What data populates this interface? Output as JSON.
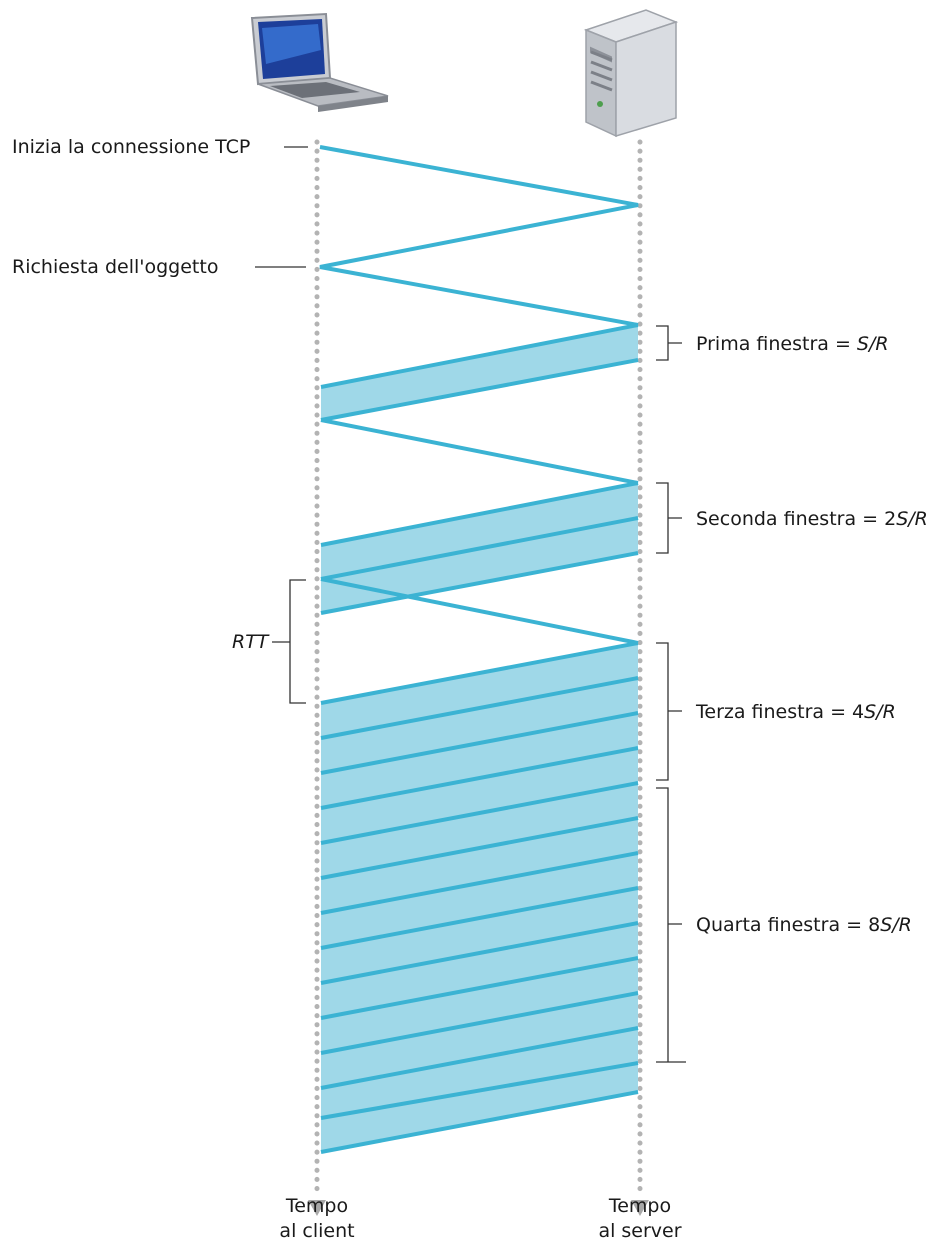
{
  "client": {
    "start_label": "Inizia la connessione TCP",
    "request_label": "Richiesta dell'oggetto",
    "rtt_label": "RTT",
    "time_label_line1": "Tempo",
    "time_label_line2": "al client"
  },
  "server": {
    "time_label_line1": "Tempo",
    "time_label_line2": "al server"
  },
  "windows": [
    {
      "prefix": "Prima finestra = ",
      "formula": "S/R"
    },
    {
      "prefix": "Seconda finestra = 2",
      "formula": "S/R"
    },
    {
      "prefix": "Terza finestra = 4",
      "formula": "S/R"
    },
    {
      "prefix": "Quarta finestra = 8",
      "formula": "S/R"
    }
  ],
  "colors": {
    "segment_line": "#3bb3d3",
    "segment_fill": "#9fd8e8",
    "timeline_dots": "#b3b3b3",
    "bracket": "#333333"
  }
}
